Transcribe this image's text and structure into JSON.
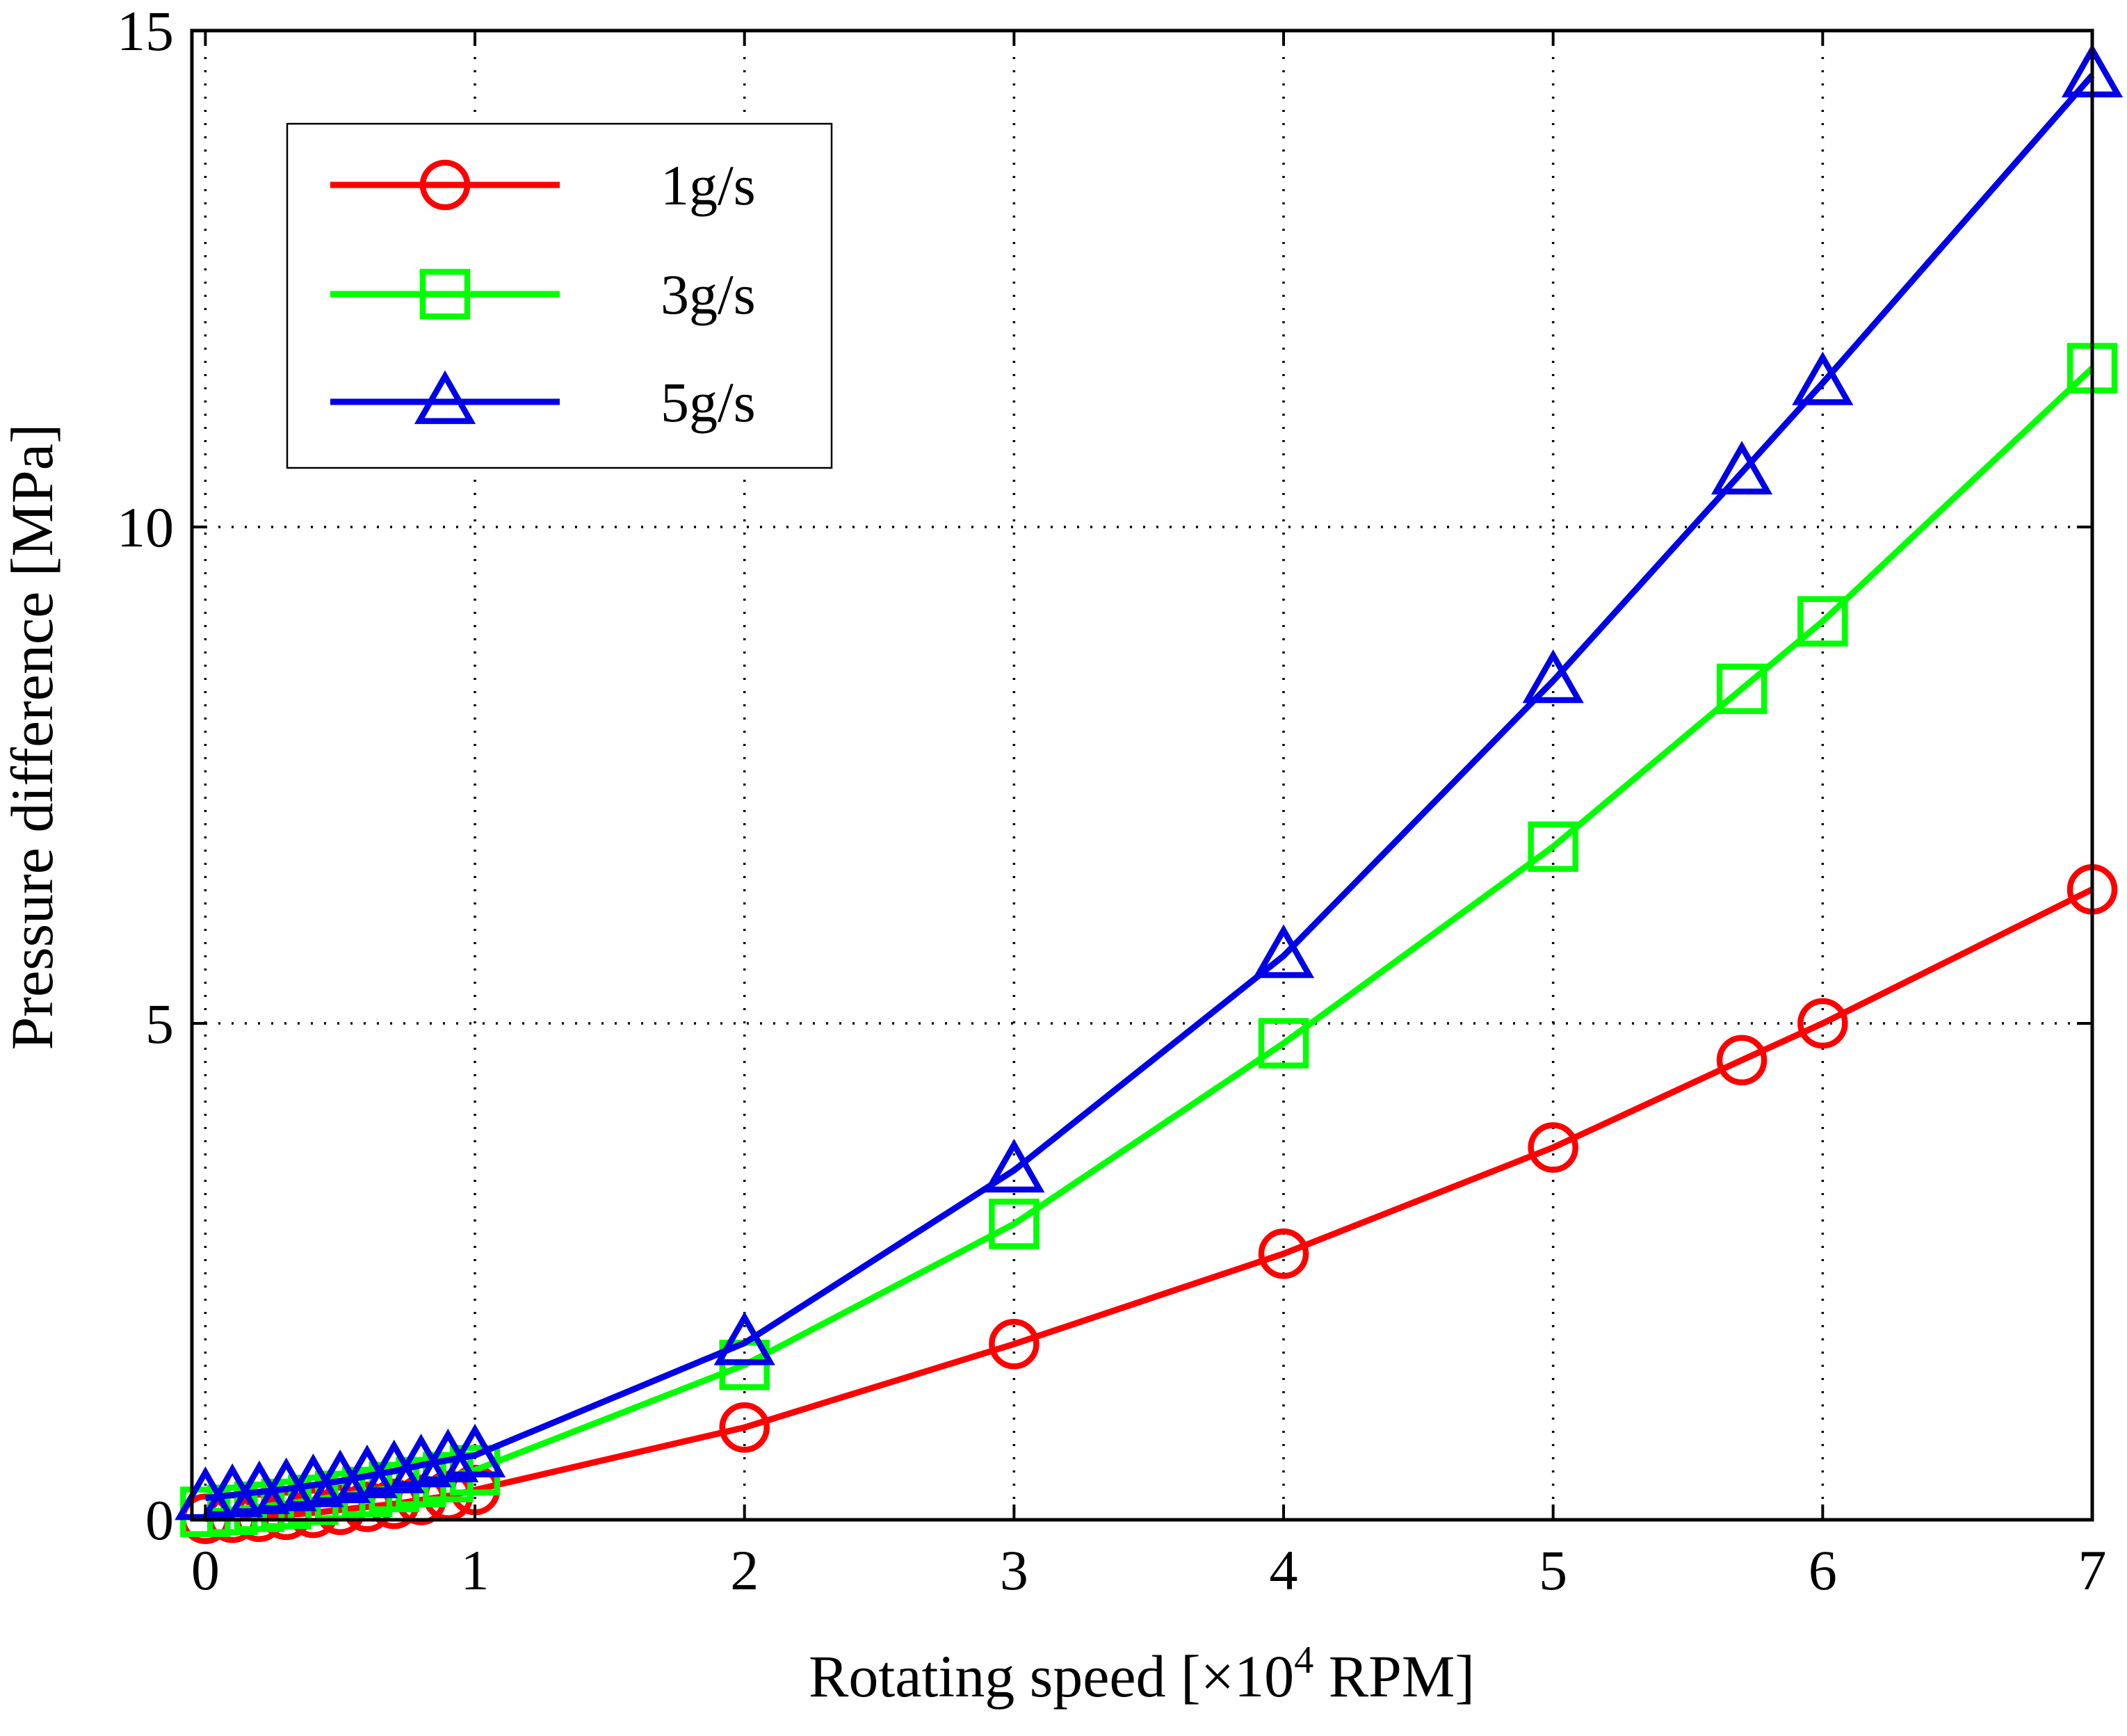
{
  "chart_data": {
    "type": "line",
    "title": "",
    "xlabel": "Rotating speed [×10",
    "xlabel_sup": "4",
    "xlabel_suffix": " RPM]",
    "ylabel": "Pressure difference [MPa]",
    "xlim": [
      -0.05,
      7
    ],
    "ylim": [
      0,
      15
    ],
    "xticks": [
      0,
      1,
      2,
      3,
      4,
      5,
      6,
      7
    ],
    "yticks": [
      0,
      5,
      10,
      15
    ],
    "xtick_labels": [
      "0",
      "1",
      "2",
      "3",
      "4",
      "5",
      "6",
      "7"
    ],
    "ytick_labels": [
      "0",
      "5",
      "10",
      "15"
    ],
    "grid": true,
    "legend_position": "top-left",
    "series": [
      {
        "name": "1g/s",
        "color": "#ff0000",
        "marker": "circle",
        "x": [
          0,
          0.1,
          0.2,
          0.3,
          0.4,
          0.5,
          0.6,
          0.7,
          0.8,
          0.9,
          1,
          2,
          3,
          4,
          5,
          5.7,
          6,
          7
        ],
        "y": [
          0.01,
          0.02,
          0.03,
          0.05,
          0.07,
          0.1,
          0.13,
          0.16,
          0.2,
          0.24,
          0.3,
          0.93,
          1.77,
          2.68,
          3.75,
          4.63,
          5.0,
          6.35
        ]
      },
      {
        "name": "3g/s",
        "color": "#00ff00",
        "marker": "square",
        "x": [
          0,
          0.1,
          0.2,
          0.3,
          0.4,
          0.5,
          0.6,
          0.7,
          0.8,
          0.9,
          1,
          2,
          3,
          4,
          5,
          5.7,
          6,
          7
        ],
        "y": [
          0.08,
          0.1,
          0.13,
          0.16,
          0.2,
          0.24,
          0.28,
          0.33,
          0.38,
          0.43,
          0.5,
          1.56,
          2.98,
          4.8,
          6.78,
          8.37,
          9.05,
          11.6
        ]
      },
      {
        "name": "5g/s",
        "color": "#0000e6",
        "marker": "triangle",
        "x": [
          0,
          0.1,
          0.2,
          0.3,
          0.4,
          0.5,
          0.6,
          0.7,
          0.8,
          0.9,
          1,
          2,
          3,
          4,
          5,
          5.7,
          6,
          7
        ],
        "y": [
          0.22,
          0.25,
          0.28,
          0.31,
          0.35,
          0.39,
          0.44,
          0.49,
          0.55,
          0.6,
          0.65,
          1.78,
          3.52,
          5.68,
          8.45,
          10.55,
          11.45,
          14.55
        ]
      }
    ]
  }
}
